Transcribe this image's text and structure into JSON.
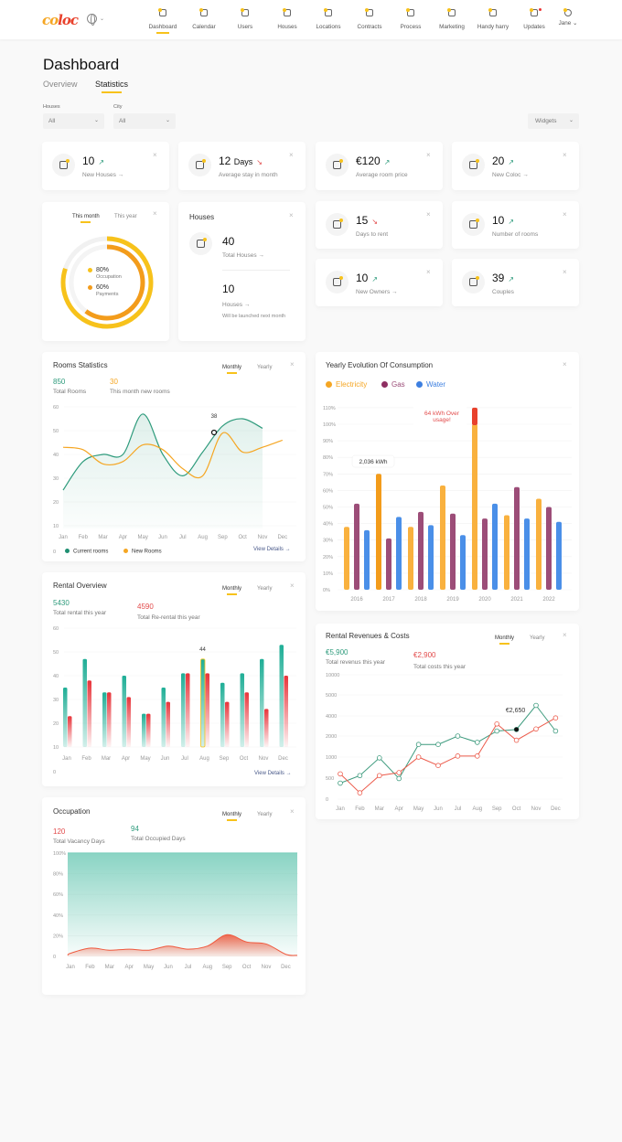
{
  "nav": {
    "logo": "coloc",
    "items": [
      {
        "label": "Dashboard",
        "icon": "dashboard-icon",
        "active": true
      },
      {
        "label": "Calendar",
        "icon": "calendar-icon"
      },
      {
        "label": "Users",
        "icon": "users-icon"
      },
      {
        "label": "Houses",
        "icon": "house-icon"
      },
      {
        "label": "Locations",
        "icon": "location-icon"
      },
      {
        "label": "Contracts",
        "icon": "contract-icon"
      },
      {
        "label": "Process",
        "icon": "process-icon"
      },
      {
        "label": "Marketing",
        "icon": "marketing-icon"
      },
      {
        "label": "Handy harry",
        "icon": "tools-icon"
      },
      {
        "label": "Updates",
        "icon": "bell-icon",
        "badge": true
      }
    ],
    "user": "Jane",
    "language_icon": "globe-icon"
  },
  "page": {
    "title": "Dashboard",
    "tabs": [
      "Overview",
      "Statistics"
    ],
    "active_tab": "Statistics"
  },
  "filters": {
    "houses_label": "Houses",
    "houses_value": "All",
    "city_label": "City",
    "city_value": "All",
    "widgets_label": "Widgets"
  },
  "stats": [
    {
      "value": "10",
      "label": "New Houses →",
      "trend": "up",
      "icon": "house-icon"
    },
    {
      "value": "12",
      "unit": "Days",
      "label": "Average stay in month",
      "trend": "down",
      "icon": "document-icon"
    },
    {
      "value": "€120",
      "label": "Average room price",
      "trend": "up",
      "icon": "price-tag-icon"
    },
    {
      "value": "20",
      "label": "New Coloc →",
      "trend": "up",
      "icon": "user-add-icon"
    },
    {
      "value": "15",
      "label": "Days to rent",
      "trend": "down",
      "icon": "calendar-icon"
    },
    {
      "value": "10",
      "label": "Number of rooms",
      "trend": "up",
      "icon": "bed-icon"
    },
    {
      "value": "10",
      "label": "New Owners →",
      "trend": "up",
      "icon": "owner-icon"
    },
    {
      "value": "39",
      "label": "Couples",
      "trend": "up",
      "icon": "heart-icon"
    }
  ],
  "donut": {
    "tabs": [
      "This month",
      "This year"
    ],
    "occupation_pct": 80,
    "occupation_value": "80%",
    "occupation_label": "Occupation",
    "payments_pct": 60,
    "payments_value": "60%",
    "payments_label": "Payments",
    "colors": {
      "occupation": "#f7c21b",
      "payments": "#f39c1b"
    }
  },
  "houses": {
    "title": "Houses",
    "total": "40",
    "total_label": "Total Houses →",
    "next": "10",
    "next_label": "Houses →",
    "next_note": "Will be launched next month"
  },
  "rooms": {
    "title": "Rooms Statistics",
    "tabs": [
      "Monthly",
      "Yearly"
    ],
    "total": "850",
    "total_label": "Total Rooms",
    "new": "30",
    "new_label": "This month new rooms",
    "view": "View Details →"
  },
  "rental": {
    "title": "Rental Overview",
    "tabs": [
      "Monthly",
      "Yearly"
    ],
    "total": "5430",
    "total_label": "Total rental this year",
    "rerental": "4590",
    "rerental_label": "Total Re-rental this year",
    "view": "View Details →"
  },
  "occupation": {
    "title": "Occupation",
    "tabs": [
      "Monthly",
      "Yearly"
    ],
    "vacancy": "120",
    "vacancy_label": "Total Vacancy Days",
    "occupied": "94",
    "occupied_label": "Total Occupied Days"
  },
  "consumption": {
    "title": "Yearly Evolution Of Consumption"
  },
  "revenues": {
    "title": "Rental Revenues & Costs",
    "tabs": [
      "Monthly",
      "Yearly"
    ],
    "revenue": "€5,900",
    "revenue_label": "Total revenus this year",
    "costs": "€2,900",
    "costs_label": "Total costs this year"
  },
  "chart_data": [
    {
      "id": "rooms",
      "type": "line",
      "categories": [
        "Jan",
        "Feb",
        "Mar",
        "Apr",
        "May",
        "Jun",
        "Jul",
        "Aug",
        "Sep",
        "Oct",
        "Nov",
        "Dec"
      ],
      "yticks": [
        "60",
        "50",
        "40",
        "30",
        "20",
        "10",
        "0"
      ],
      "ylim": [
        0,
        60
      ],
      "grid": true,
      "legend": "bottom-left",
      "series": [
        {
          "name": "Current rooms",
          "color": "#2e9b7c",
          "values": [
            25,
            37,
            40,
            40,
            57,
            40,
            31,
            41,
            52,
            55,
            51,
            null
          ]
        },
        {
          "name": "New Rooms",
          "color": "#f5a623",
          "values": [
            43,
            42,
            36,
            37,
            44,
            42,
            34,
            31,
            49,
            41,
            43,
            46
          ]
        }
      ],
      "annotation": "38"
    },
    {
      "id": "consumption",
      "type": "bar",
      "categories": [
        "2016",
        "2017",
        "2018",
        "2019",
        "2020",
        "2021",
        "2022"
      ],
      "yticks": [
        "110%",
        "100%",
        "90%",
        "80%",
        "70%",
        "60%",
        "50%",
        "40%",
        "30%",
        "20%",
        "10%",
        "0%"
      ],
      "ylim": [
        0,
        110
      ],
      "grid": true,
      "legend": "top-left",
      "series": [
        {
          "name": "Electricity",
          "color": "#f9b13e",
          "values": [
            38,
            70,
            38,
            63,
            110,
            45,
            55
          ]
        },
        {
          "name": "Gas",
          "color": "#9c4d78",
          "values": [
            52,
            31,
            47,
            46,
            43,
            62,
            50
          ]
        },
        {
          "name": "Water",
          "color": "#4a8fe8",
          "values": [
            36,
            44,
            39,
            33,
            52,
            43,
            41
          ]
        }
      ],
      "annotations": [
        "2,036 kWh",
        "64 kWh Over usage!"
      ],
      "over_color": "#e8412c"
    },
    {
      "id": "rental",
      "type": "bar",
      "categories": [
        "Jan",
        "Feb",
        "Mar",
        "Apr",
        "May",
        "Jun",
        "Jul",
        "Aug",
        "Sep",
        "Oct",
        "Nov",
        "Dec"
      ],
      "yticks": [
        "60",
        "50",
        "40",
        "30",
        "20",
        "10",
        "0"
      ],
      "ylim": [
        0,
        60
      ],
      "grid": true,
      "series": [
        {
          "color": "#1fae96",
          "values": [
            35,
            47,
            33,
            40,
            24,
            35,
            41,
            47,
            37,
            41,
            47,
            53
          ]
        },
        {
          "color": "#e8343a",
          "values": [
            23,
            38,
            33,
            31,
            24,
            29,
            41,
            41,
            29,
            33,
            26,
            40
          ]
        }
      ],
      "annotation": "44"
    },
    {
      "id": "revenues",
      "type": "line",
      "categories": [
        "Jan",
        "Feb",
        "Mar",
        "Apr",
        "May",
        "Jun",
        "Jul",
        "Aug",
        "Sep",
        "Oct",
        "Nov",
        "Dec"
      ],
      "yticks": [
        "10000",
        "5000",
        "4000",
        "2000",
        "1000",
        "500",
        "0"
      ],
      "grid": true,
      "series": [
        {
          "color": "#3c9a7d",
          "values": [
            380,
            560,
            980,
            490,
            1600,
            1600,
            2000,
            1700,
            2500,
            2650,
            4500,
            2500
          ]
        },
        {
          "color": "#ec5b4b",
          "values": [
            600,
            150,
            560,
            630,
            1000,
            800,
            1050,
            1050,
            3200,
            1800,
            2700,
            3800
          ]
        }
      ],
      "annotation": "€2,650"
    },
    {
      "id": "occupation",
      "type": "area",
      "categories": [
        "Jan",
        "Feb",
        "Mar",
        "Apr",
        "May",
        "Jun",
        "Jul",
        "Aug",
        "Sep",
        "Oct",
        "Nov",
        "Dec"
      ],
      "yticks": [
        "100%",
        "80%",
        "60%",
        "40%",
        "20%",
        "0"
      ],
      "ylim": [
        0,
        100
      ],
      "series": [
        {
          "color": "#7dcfbd",
          "values": [
            100,
            100,
            100,
            100,
            100,
            100,
            100,
            100,
            100,
            100,
            100,
            100
          ]
        },
        {
          "color": "#ef5a3f",
          "values": [
            3,
            8,
            6,
            7,
            6,
            10,
            7,
            10,
            21,
            14,
            12,
            2
          ]
        }
      ]
    }
  ]
}
